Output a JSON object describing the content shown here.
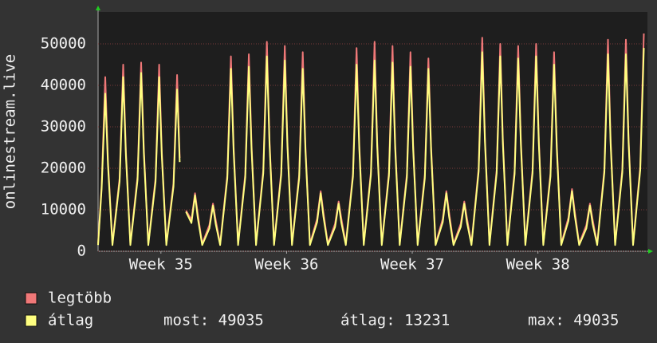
{
  "chart_data": {
    "type": "line",
    "y_label": "onlinestream.live",
    "x": [
      0,
      0.2,
      0.4,
      0.55,
      0.8,
      1.2,
      1.4,
      1.55,
      1.8,
      2.2,
      2.4,
      2.55,
      2.8,
      3.2,
      3.4,
      3.55,
      3.8,
      4.2,
      4.4,
      4.55,
      4.7,
      4.9,
      5.2,
      5.4,
      5.55,
      5.8,
      6.2,
      6.4,
      6.55,
      6.8,
      7.2,
      7.4,
      7.55,
      7.8,
      8.2,
      8.4,
      8.55,
      8.8,
      9.2,
      9.4,
      9.55,
      9.8,
      10.2,
      10.4,
      10.55,
      10.8,
      11.2,
      11.4,
      11.55,
      11.8,
      12.2,
      12.4,
      12.55,
      12.8,
      13.2,
      13.4,
      13.55,
      13.8,
      14.2,
      14.4,
      14.55,
      14.8,
      15.2,
      15.4,
      15.55,
      15.8,
      16.2,
      16.4,
      16.55,
      16.8,
      17.2,
      17.4,
      17.55,
      17.8,
      18.2,
      18.4,
      18.55,
      18.8,
      19.2,
      19.4,
      19.55,
      19.8,
      20.2,
      20.4,
      20.55,
      20.8,
      21.2,
      21.4,
      21.55,
      21.8,
      22.2,
      22.4,
      22.55,
      22.8,
      23.2,
      23.4,
      23.55,
      23.8,
      24.2,
      24.4,
      24.55,
      24.8,
      25.2,
      25.4,
      25.55,
      25.8,
      26.2,
      26.4,
      26.55,
      26.8,
      27.2,
      27.4,
      27.55,
      27.8,
      28.2,
      28.4,
      28.55,
      28.8,
      29.2,
      29.4,
      29.55,
      29.8,
      30.2,
      30.4
    ],
    "series": [
      {
        "name": "legtöbb",
        "color": "#f07878",
        "values": [
          1800,
          16000,
          42000,
          21900,
          1800,
          17600,
          45000,
          24100,
          1800,
          18000,
          45500,
          24700,
          1800,
          17600,
          45000,
          24100,
          1800,
          16400,
          42500,
          22500,
          null,
          9800,
          7600,
          14000,
          9100,
          1800,
          6300,
          11500,
          7600,
          1800,
          18400,
          47000,
          25200,
          1800,
          18600,
          47500,
          25500,
          1800,
          19600,
          50500,
          26900,
          1800,
          19200,
          49500,
          26300,
          1800,
          18400,
          48000,
          25200,
          1800,
          7800,
          14500,
          9400,
          1800,
          6600,
          12000,
          7900,
          1800,
          18800,
          49000,
          25800,
          1800,
          19200,
          50500,
          26300,
          1800,
          19000,
          49500,
          26000,
          1800,
          18600,
          48000,
          25500,
          1800,
          18400,
          46500,
          25200,
          1800,
          7800,
          14500,
          9400,
          1800,
          6600,
          12000,
          7900,
          1800,
          20000,
          51500,
          27400,
          1800,
          19600,
          50000,
          26900,
          1800,
          19400,
          49500,
          26600,
          1800,
          19600,
          50000,
          26900,
          1800,
          18800,
          48000,
          25800,
          1800,
          8100,
          15000,
          9700,
          1800,
          6300,
          11500,
          7600,
          1800,
          19800,
          51000,
          27100,
          1800,
          19800,
          51000,
          27100,
          1800,
          20400,
          52500
        ]
      },
      {
        "name": "átlag",
        "color": "#ffff80",
        "values": [
          1500,
          15200,
          38000,
          20900,
          1500,
          16800,
          42000,
          23100,
          1500,
          17200,
          43000,
          23700,
          1500,
          16800,
          42000,
          23100,
          1500,
          15600,
          39000,
          21500,
          null,
          9500,
          6800,
          13500,
          8100,
          1500,
          5500,
          11000,
          6600,
          1500,
          17600,
          44000,
          24200,
          1500,
          17800,
          44500,
          24500,
          1500,
          18800,
          47000,
          25900,
          1500,
          18400,
          46000,
          25300,
          1500,
          17600,
          44000,
          24200,
          1500,
          7000,
          14000,
          8400,
          1500,
          5800,
          11500,
          6900,
          1500,
          18000,
          45000,
          24800,
          1500,
          18400,
          46000,
          25300,
          1500,
          18200,
          45500,
          25000,
          1500,
          17800,
          44500,
          24500,
          1500,
          17600,
          44000,
          24200,
          1500,
          7000,
          14000,
          8400,
          1500,
          5800,
          11500,
          6900,
          1500,
          19200,
          48000,
          26400,
          1500,
          18800,
          47000,
          25900,
          1500,
          18600,
          46500,
          25600,
          1500,
          18800,
          47000,
          25900,
          1500,
          18000,
          45000,
          24800,
          1500,
          7300,
          14500,
          8700,
          1500,
          5500,
          11000,
          6600,
          1500,
          19000,
          47500,
          26100,
          1500,
          19000,
          47500,
          26100,
          1500,
          19600,
          49035
        ]
      }
    ],
    "stats": [
      "most: 49035",
      "átlag: 13231",
      "max: 49035"
    ],
    "xlim": [
      0,
      30.6
    ],
    "xticks": [
      {
        "value": 3.5,
        "label": "Week 35"
      },
      {
        "value": 10.5,
        "label": "Week 36"
      },
      {
        "value": 17.5,
        "label": "Week 37"
      },
      {
        "value": 24.5,
        "label": "Week 38"
      }
    ],
    "ylim": [
      0,
      57700
    ],
    "yticks": [
      0,
      10000,
      20000,
      30000,
      40000,
      50000
    ],
    "grid": true
  }
}
